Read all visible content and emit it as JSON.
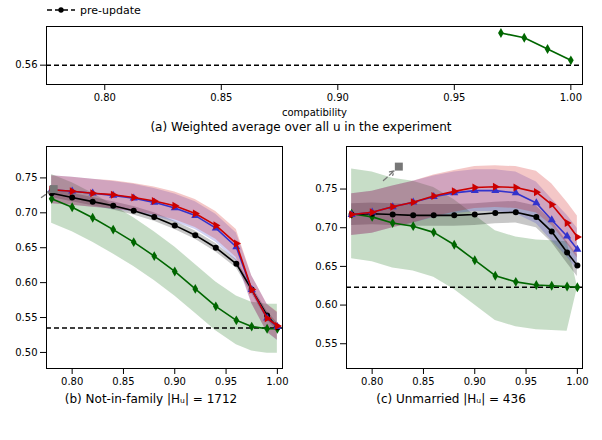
{
  "chart_data": [
    {
      "type": "line",
      "title": "(a) Weighted average over all u in the experiment",
      "xlabel": "compatibility",
      "xlim": [
        0.775,
        1.005
      ],
      "ylim": [
        0.554,
        0.572
      ],
      "xticks": [
        {
          "value": 0.8,
          "label": "0.80"
        },
        0.85,
        {
          "value": 0.9,
          "label": "0.90"
        },
        0.95,
        {
          "value": 1.0,
          "label": "1.00"
        }
      ],
      "yticks": [
        0.56
      ],
      "grid": false,
      "legend": "upper left",
      "series": [
        {
          "name": "pre-update",
          "type": "hline",
          "color": "#000000",
          "line_style": "dashed",
          "marker": "circle",
          "values": [
            0.56
          ]
        },
        {
          "color": "#006600",
          "marker": "diamond",
          "x": [
            0.97,
            0.98,
            0.99,
            1.0
          ],
          "values": [
            0.57,
            0.5685,
            0.565,
            0.5615
          ]
        }
      ]
    },
    {
      "type": "line",
      "title": "(b) Not-in-family |Hᵤ| = 1712",
      "xlim": [
        0.775,
        1.005
      ],
      "ylim": [
        0.477,
        0.795
      ],
      "xticks": [
        {
          "value": 0.8,
          "label": "0.80"
        },
        0.85,
        {
          "value": 0.9,
          "label": "0.90"
        },
        0.95,
        {
          "value": 1.0,
          "label": "1.00"
        }
      ],
      "yticks": [
        {
          "value": 0.5,
          "label": "0.50"
        },
        0.55,
        {
          "value": 0.6,
          "label": "0.60"
        },
        0.65,
        {
          "value": 0.7,
          "label": "0.70"
        },
        0.75
      ],
      "grid": false,
      "series": [
        {
          "color": "#006600",
          "marker": "diamond",
          "x": [
            0.78,
            0.8,
            0.82,
            0.84,
            0.86,
            0.88,
            0.9,
            0.92,
            0.94,
            0.96,
            0.975,
            0.99,
            1.0
          ],
          "values": [
            0.72,
            0.708,
            0.693,
            0.676,
            0.658,
            0.638,
            0.616,
            0.591,
            0.566,
            0.546,
            0.537,
            0.534,
            0.534
          ],
          "lower": [
            0.685,
            0.673,
            0.658,
            0.641,
            0.623,
            0.603,
            0.581,
            0.556,
            0.531,
            0.511,
            0.502,
            0.499,
            0.499
          ],
          "upper": [
            0.755,
            0.743,
            0.728,
            0.711,
            0.693,
            0.673,
            0.651,
            0.626,
            0.601,
            0.581,
            0.572,
            0.569,
            0.569
          ]
        },
        {
          "color": "#000000",
          "marker": "circle",
          "x": [
            0.78,
            0.8,
            0.82,
            0.84,
            0.86,
            0.88,
            0.9,
            0.92,
            0.94,
            0.96,
            0.975,
            0.99,
            1.0
          ],
          "values": [
            0.728,
            0.722,
            0.716,
            0.71,
            0.703,
            0.694,
            0.682,
            0.668,
            0.65,
            0.627,
            0.59,
            0.553,
            0.536
          ],
          "lower": [
            0.722,
            0.716,
            0.71,
            0.704,
            0.697,
            0.688,
            0.676,
            0.662,
            0.644,
            0.621,
            0.584,
            0.547,
            0.53
          ],
          "upper": [
            0.734,
            0.728,
            0.722,
            0.716,
            0.709,
            0.7,
            0.688,
            0.674,
            0.656,
            0.633,
            0.596,
            0.559,
            0.542
          ]
        },
        {
          "color": "#3333cc",
          "marker": "triangle-up",
          "x": [
            0.78,
            0.8,
            0.82,
            0.84,
            0.86,
            0.88,
            0.9,
            0.92,
            0.94,
            0.96,
            0.975,
            0.99,
            1.0
          ],
          "values": [
            0.733,
            0.731,
            0.728,
            0.725,
            0.721,
            0.715,
            0.707,
            0.696,
            0.678,
            0.651,
            0.59,
            0.549,
            0.537
          ],
          "lower": [
            0.713,
            0.711,
            0.708,
            0.705,
            0.701,
            0.695,
            0.687,
            0.676,
            0.658,
            0.631,
            0.57,
            0.529,
            0.517
          ],
          "upper": [
            0.753,
            0.751,
            0.748,
            0.745,
            0.741,
            0.735,
            0.727,
            0.716,
            0.698,
            0.671,
            0.61,
            0.569,
            0.557
          ]
        },
        {
          "color": "#cc0000",
          "marker": "triangle-right",
          "x": [
            0.78,
            0.8,
            0.82,
            0.84,
            0.86,
            0.88,
            0.9,
            0.92,
            0.94,
            0.96,
            0.975,
            0.99,
            1.0
          ],
          "values": [
            0.733,
            0.731,
            0.728,
            0.726,
            0.722,
            0.717,
            0.71,
            0.699,
            0.682,
            0.656,
            0.59,
            0.549,
            0.538
          ],
          "lower": [
            0.713,
            0.711,
            0.708,
            0.706,
            0.702,
            0.697,
            0.69,
            0.679,
            0.662,
            0.636,
            0.57,
            0.529,
            0.518
          ],
          "upper": [
            0.753,
            0.751,
            0.748,
            0.746,
            0.742,
            0.737,
            0.73,
            0.719,
            0.702,
            0.676,
            0.61,
            0.569,
            0.558
          ]
        },
        {
          "type": "hline",
          "color": "#000000",
          "line_style": "dashed",
          "values": [
            0.535
          ]
        },
        {
          "type": "scatter",
          "color": "#777777",
          "marker": "square",
          "x": [
            0.782
          ],
          "values": [
            0.734
          ]
        }
      ],
      "annotations": [
        {
          "type": "arrow",
          "color": "#777777",
          "line_style": "dashed",
          "x": 0.77,
          "y": 0.722,
          "x2": 0.7784,
          "y2": 0.7304
        }
      ]
    },
    {
      "type": "line",
      "title": "(c) Unmarried |Hᵤ| = 436",
      "xlim": [
        0.775,
        1.005
      ],
      "ylim": [
        0.518,
        0.805
      ],
      "xticks": [
        {
          "value": 0.8,
          "label": "0.80"
        },
        0.85,
        {
          "value": 0.9,
          "label": "0.90"
        },
        0.95,
        {
          "value": 1.0,
          "label": "1.00"
        }
      ],
      "yticks": [
        0.55,
        {
          "value": 0.6,
          "label": "0.60"
        },
        0.65,
        {
          "value": 0.7,
          "label": "0.70"
        },
        0.75
      ],
      "grid": false,
      "series": [
        {
          "color": "#006600",
          "marker": "diamond",
          "x": [
            0.78,
            0.8,
            0.82,
            0.84,
            0.86,
            0.88,
            0.9,
            0.92,
            0.94,
            0.96,
            0.975,
            0.99,
            1.0
          ],
          "values": [
            0.718,
            0.714,
            0.706,
            0.702,
            0.694,
            0.678,
            0.658,
            0.638,
            0.63,
            0.626,
            0.625,
            0.624,
            0.623
          ],
          "lower": [
            0.66,
            0.656,
            0.648,
            0.644,
            0.636,
            0.62,
            0.6,
            0.58,
            0.572,
            0.568,
            0.567,
            0.566,
            0.622
          ],
          "upper": [
            0.776,
            0.772,
            0.764,
            0.76,
            0.752,
            0.736,
            0.716,
            0.696,
            0.688,
            0.684,
            0.683,
            0.682,
            0.624
          ]
        },
        {
          "color": "#000000",
          "marker": "circle",
          "x": [
            0.78,
            0.8,
            0.82,
            0.84,
            0.86,
            0.88,
            0.9,
            0.92,
            0.94,
            0.96,
            0.975,
            0.99,
            1.0
          ],
          "values": [
            0.717,
            0.718,
            0.717,
            0.716,
            0.716,
            0.716,
            0.717,
            0.719,
            0.72,
            0.714,
            0.695,
            0.668,
            0.651
          ],
          "lower": [
            0.703,
            0.704,
            0.703,
            0.702,
            0.702,
            0.702,
            0.703,
            0.705,
            0.706,
            0.7,
            0.681,
            0.654,
            0.637
          ],
          "upper": [
            0.731,
            0.732,
            0.731,
            0.73,
            0.73,
            0.73,
            0.731,
            0.733,
            0.734,
            0.728,
            0.709,
            0.682,
            0.665
          ]
        },
        {
          "color": "#3333cc",
          "marker": "triangle-up",
          "x": [
            0.78,
            0.8,
            0.82,
            0.84,
            0.86,
            0.88,
            0.9,
            0.92,
            0.94,
            0.96,
            0.975,
            0.99,
            1.0
          ],
          "values": [
            0.717,
            0.72,
            0.727,
            0.733,
            0.74,
            0.745,
            0.748,
            0.748,
            0.745,
            0.732,
            0.71,
            0.689,
            0.672
          ],
          "lower": [
            0.69,
            0.693,
            0.7,
            0.706,
            0.713,
            0.718,
            0.721,
            0.721,
            0.718,
            0.705,
            0.683,
            0.662,
            0.645
          ],
          "upper": [
            0.744,
            0.747,
            0.754,
            0.76,
            0.767,
            0.772,
            0.775,
            0.775,
            0.772,
            0.759,
            0.737,
            0.716,
            0.699
          ]
        },
        {
          "color": "#cc0000",
          "marker": "triangle-right",
          "x": [
            0.78,
            0.8,
            0.82,
            0.84,
            0.86,
            0.88,
            0.9,
            0.92,
            0.94,
            0.96,
            0.975,
            0.99,
            1.0
          ],
          "values": [
            0.717,
            0.72,
            0.727,
            0.733,
            0.741,
            0.747,
            0.752,
            0.753,
            0.752,
            0.746,
            0.73,
            0.706,
            0.688
          ],
          "lower": [
            0.69,
            0.693,
            0.7,
            0.706,
            0.714,
            0.72,
            0.725,
            0.726,
            0.725,
            0.719,
            0.703,
            0.679,
            0.661
          ],
          "upper": [
            0.744,
            0.747,
            0.754,
            0.76,
            0.768,
            0.774,
            0.779,
            0.78,
            0.779,
            0.773,
            0.757,
            0.733,
            0.715
          ]
        },
        {
          "type": "hline",
          "color": "#000000",
          "line_style": "dashed",
          "values": [
            0.623
          ]
        },
        {
          "type": "scatter",
          "color": "#777777",
          "marker": "square",
          "x": [
            0.826
          ],
          "values": [
            0.779
          ]
        }
      ],
      "annotations": [
        {
          "type": "arrow",
          "color": "#777777",
          "line_style": "dashed",
          "x": 0.811,
          "y": 0.761,
          "x2": 0.8215,
          "y2": 0.7736
        }
      ]
    }
  ]
}
